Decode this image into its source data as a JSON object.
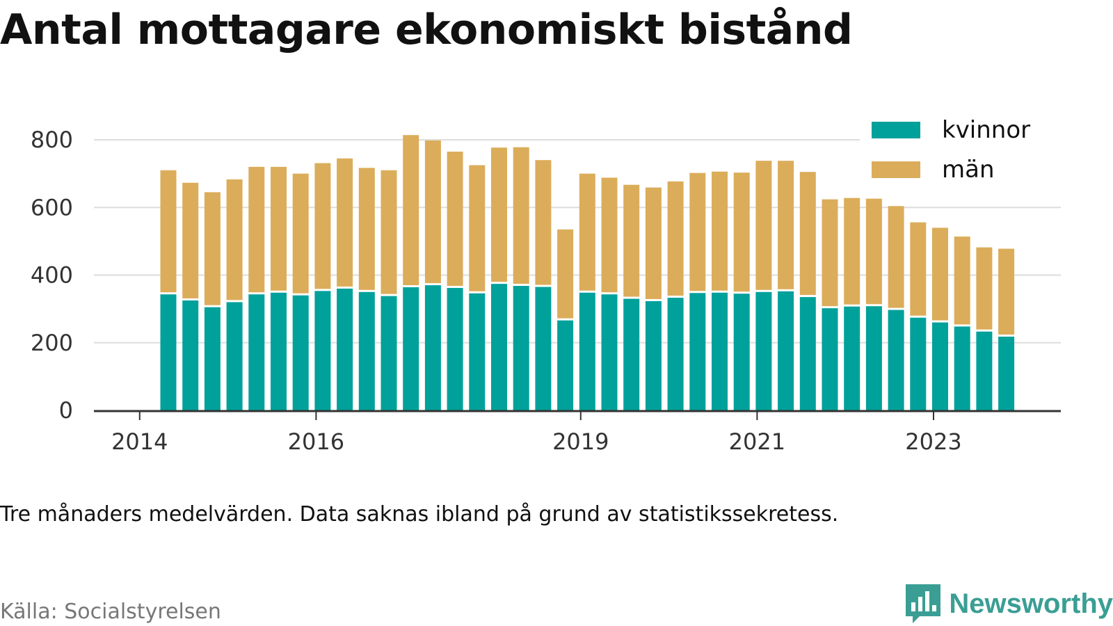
{
  "title": "Antal mottagare ekonomiskt bistånd",
  "note": "Tre månaders medelvärden. Data saknas ibland på grund av statistikssekretess.",
  "source": "Källa: Socialstyrelsen",
  "brand": {
    "name": "Newsworthy",
    "icon": "newsworthy-logo-icon",
    "color": "#3a9e94"
  },
  "chart_data": {
    "type": "bar",
    "stacked": true,
    "title": "Antal mottagare ekonomiskt bistånd",
    "xlabel": "",
    "ylabel": "",
    "ylim": [
      0,
      800
    ],
    "yticks": [
      0,
      200,
      400,
      600,
      800
    ],
    "xticks": [
      "2014",
      "2016",
      "2019",
      "2021",
      "2023"
    ],
    "grid": true,
    "legend_position": "top-right",
    "categories": [
      "2014 Q2",
      "2014 Q3",
      "2014 Q4",
      "2015 Q1",
      "2015 Q2",
      "2015 Q3",
      "2015 Q4",
      "2016 Q1",
      "2016 Q2",
      "2016 Q3",
      "2016 Q4",
      "2017 Q1",
      "2017 Q2",
      "2017 Q3",
      "2017 Q4",
      "2018 Q1",
      "2018 Q2",
      "2018 Q3",
      "2018 Q4",
      "2019 Q1",
      "2019 Q2",
      "2019 Q3",
      "2019 Q4",
      "2020 Q1",
      "2020 Q2",
      "2020 Q3",
      "2020 Q4",
      "2021 Q1",
      "2021 Q2",
      "2021 Q3",
      "2021 Q4",
      "2022 Q1",
      "2022 Q2",
      "2022 Q3",
      "2022 Q4",
      "2023 Q1",
      "2023 Q2",
      "2023 Q3",
      "2023 Q4"
    ],
    "series": [
      {
        "name": "kvinnor",
        "color": "#00a19a",
        "values": [
          343,
          325,
          305,
          320,
          343,
          348,
          340,
          353,
          360,
          350,
          338,
          364,
          370,
          362,
          346,
          374,
          368,
          365,
          266,
          348,
          343,
          330,
          323,
          333,
          347,
          348,
          345,
          350,
          352,
          335,
          302,
          307,
          308,
          297,
          274,
          260,
          248,
          233,
          218
        ]
      },
      {
        "name": "män",
        "color": "#dbad5a",
        "values": [
          367,
          348,
          340,
          363,
          377,
          372,
          360,
          378,
          385,
          367,
          372,
          450,
          428,
          403,
          379,
          403,
          410,
          375,
          269,
          352,
          345,
          337,
          336,
          344,
          355,
          358,
          358,
          388,
          386,
          370,
          322,
          321,
          318,
          307,
          282,
          280,
          266,
          249,
          260
        ]
      }
    ]
  }
}
